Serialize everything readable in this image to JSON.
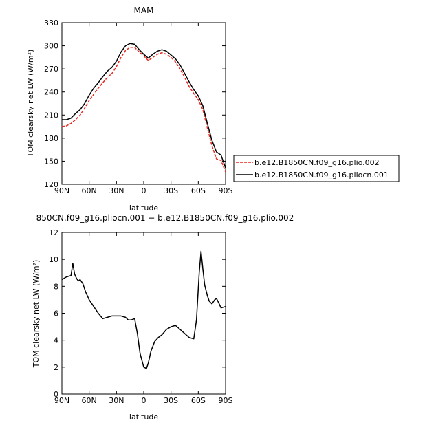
{
  "chart_data": [
    {
      "type": "line",
      "title": "MAM",
      "xlabel": "latitude",
      "ylabel": "TOM clearsky net LW (W/m²)",
      "xlim": [
        90,
        -90
      ],
      "ylim": [
        120,
        330
      ],
      "x_ticks": [
        90,
        60,
        30,
        0,
        -30,
        -60,
        -90
      ],
      "x_tick_labels": [
        "90N",
        "60N",
        "30N",
        "0",
        "30S",
        "60S",
        "90S"
      ],
      "y_ticks": [
        120,
        150,
        180,
        210,
        240,
        270,
        300,
        330
      ],
      "y_tick_labels": [
        "120",
        "150",
        "180",
        "210",
        "240",
        "270",
        "300",
        "330"
      ],
      "legend_position": "right",
      "series": [
        {
          "name": "b.e12.B1850CN.f09_g16.plio.002",
          "color": "#e8271e",
          "dash": "dashed",
          "x": [
            90,
            85,
            80,
            75,
            70,
            65,
            60,
            55,
            50,
            45,
            40,
            35,
            30,
            25,
            20,
            15,
            10,
            5,
            0,
            -5,
            -10,
            -15,
            -20,
            -25,
            -30,
            -35,
            -40,
            -45,
            -50,
            -55,
            -60,
            -65,
            -70,
            -75,
            -80,
            -85,
            -90
          ],
          "values": [
            195,
            196,
            199,
            204,
            210,
            219,
            229,
            237,
            245,
            252,
            259,
            264,
            273,
            285,
            294,
            298,
            298,
            292,
            287,
            281,
            285,
            289,
            291,
            289,
            285,
            279,
            270,
            259,
            247,
            238,
            230,
            217,
            193,
            170,
            153,
            151,
            136
          ]
        },
        {
          "name": "b.e12.B1850CN.f09_g16.pliocn.001",
          "color": "#000000",
          "dash": "solid",
          "x": [
            90,
            85,
            80,
            75,
            70,
            65,
            60,
            55,
            50,
            45,
            40,
            35,
            30,
            25,
            20,
            15,
            10,
            5,
            0,
            -5,
            -10,
            -15,
            -20,
            -25,
            -30,
            -35,
            -40,
            -45,
            -50,
            -55,
            -60,
            -65,
            -70,
            -75,
            -80,
            -85,
            -90
          ],
          "values": [
            204,
            204,
            206,
            212,
            217,
            225,
            236,
            245,
            252,
            260,
            267,
            272,
            280,
            292,
            300,
            303,
            302,
            295,
            289,
            284,
            289,
            293,
            295,
            293,
            288,
            283,
            275,
            264,
            253,
            243,
            235,
            222,
            199,
            177,
            162,
            158,
            141
          ]
        }
      ]
    },
    {
      "type": "line",
      "title": "850CN.f09_g16.pliocn.001 − b.e12.B1850CN.f09_g16.plio.002",
      "xlabel": "latitude",
      "ylabel": "TOM clearsky net LW (W/m²)",
      "xlim": [
        90,
        -90
      ],
      "ylim": [
        0,
        12
      ],
      "x_ticks": [
        90,
        60,
        30,
        0,
        -30,
        -60,
        -90
      ],
      "x_tick_labels": [
        "90N",
        "60N",
        "30N",
        "0",
        "30S",
        "60S",
        "90S"
      ],
      "y_ticks": [
        0,
        2,
        4,
        6,
        8,
        10,
        12
      ],
      "y_tick_labels": [
        "0",
        "2",
        "4",
        "6",
        "8",
        "10",
        "12"
      ],
      "series": [
        {
          "color": "#000000",
          "dash": "solid",
          "x": [
            90,
            85,
            80,
            78,
            76,
            74,
            72,
            70,
            67,
            64,
            60,
            55,
            50,
            45,
            40,
            35,
            30,
            25,
            20,
            17,
            14,
            10,
            7,
            4,
            0,
            -3,
            -5,
            -8,
            -12,
            -16,
            -20,
            -25,
            -30,
            -35,
            -40,
            -45,
            -50,
            -55,
            -58,
            -61,
            -63,
            -65,
            -67,
            -70,
            -72,
            -75,
            -78,
            -80,
            -83,
            -85,
            -90
          ],
          "values": [
            8.5,
            8.7,
            8.8,
            9.7,
            8.9,
            8.6,
            8.4,
            8.5,
            8.2,
            7.6,
            7.0,
            6.5,
            6.0,
            5.6,
            5.7,
            5.8,
            5.8,
            5.8,
            5.7,
            5.5,
            5.5,
            5.6,
            4.5,
            3.0,
            2.0,
            1.9,
            2.3,
            3.2,
            3.9,
            4.2,
            4.4,
            4.8,
            5.0,
            5.1,
            4.8,
            4.5,
            4.2,
            4.1,
            5.5,
            9.0,
            10.6,
            9.3,
            8.1,
            7.3,
            6.9,
            6.7,
            7.0,
            7.1,
            6.7,
            6.4,
            6.5
          ]
        }
      ]
    }
  ]
}
